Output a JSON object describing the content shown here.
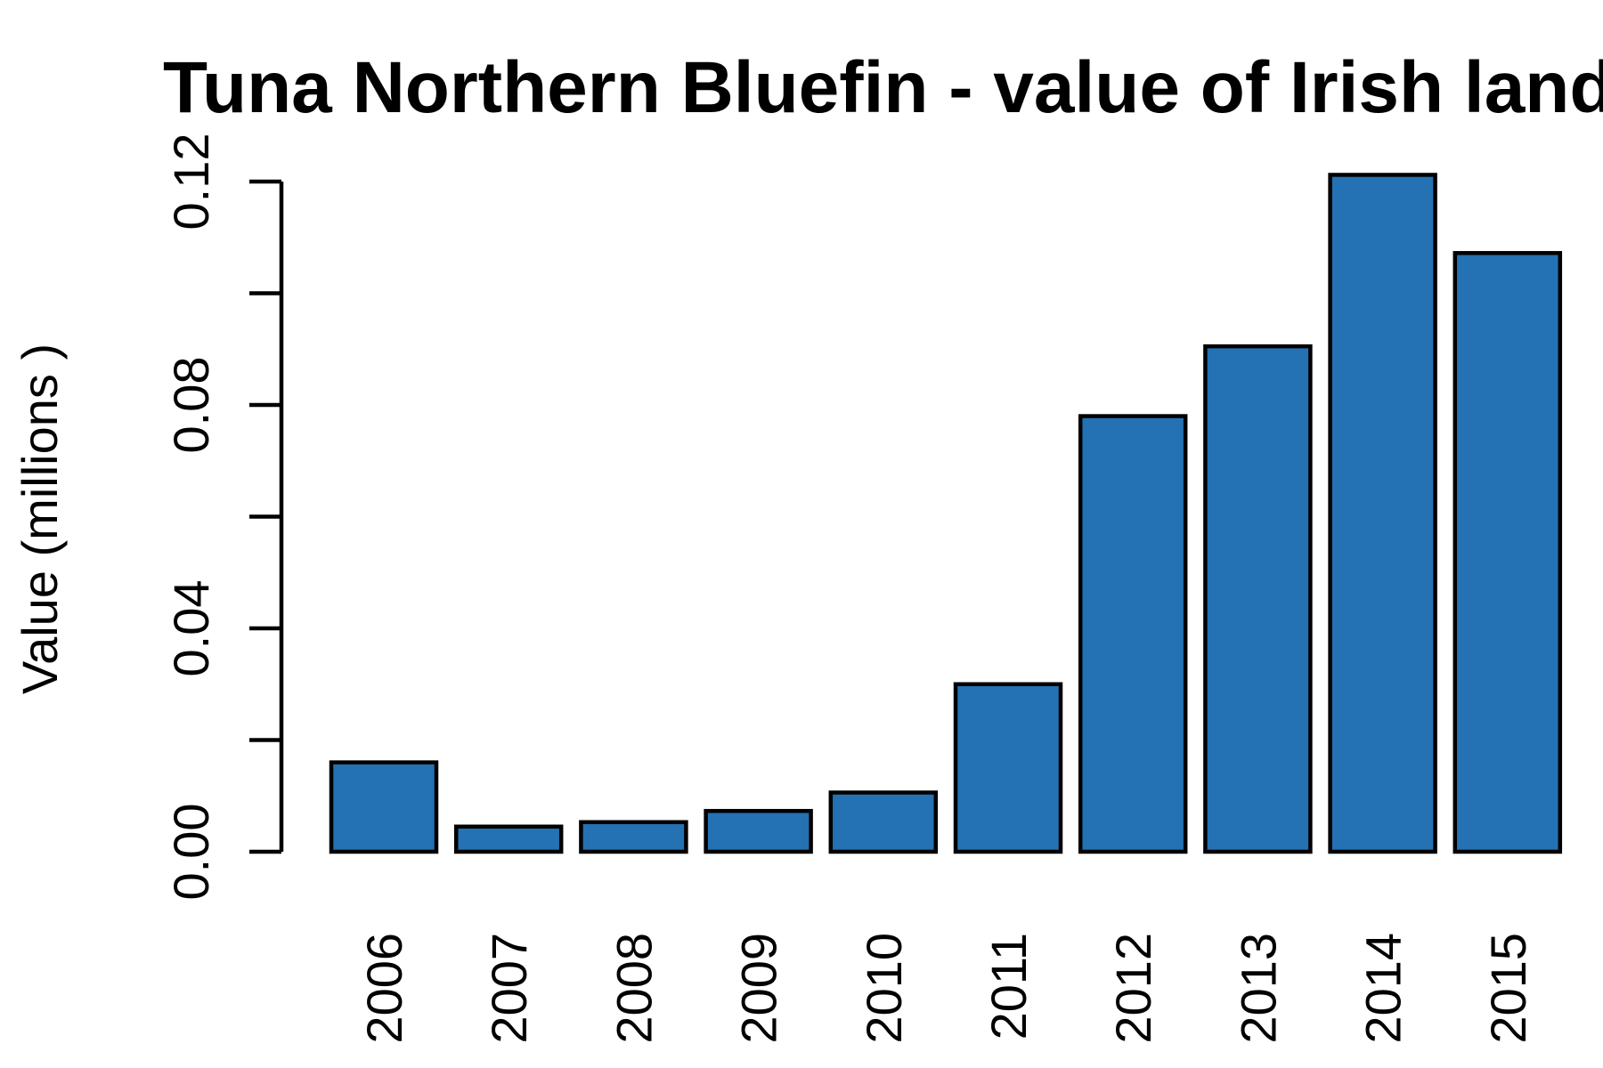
{
  "chart_data": {
    "type": "bar",
    "title": "Tuna Northern Bluefin - value of Irish landings",
    "xlabel": "",
    "ylabel": "Value (millions )",
    "categories": [
      "2006",
      "2007",
      "2008",
      "2009",
      "2010",
      "2011",
      "2012",
      "2013",
      "2014",
      "2015"
    ],
    "values": [
      0.016,
      0.0045,
      0.0053,
      0.0073,
      0.0106,
      0.03,
      0.078,
      0.0905,
      0.1212,
      0.1072
    ],
    "ylim": [
      0,
      0.12
    ],
    "y_ticks": [
      0.0,
      0.02,
      0.04,
      0.06,
      0.08,
      0.1,
      0.12
    ],
    "y_tick_labels": [
      "0.00",
      "",
      "0.04",
      "",
      "0.08",
      "",
      "0.12"
    ],
    "bar_color": "#2471b3",
    "grid": false,
    "legend": "none"
  }
}
